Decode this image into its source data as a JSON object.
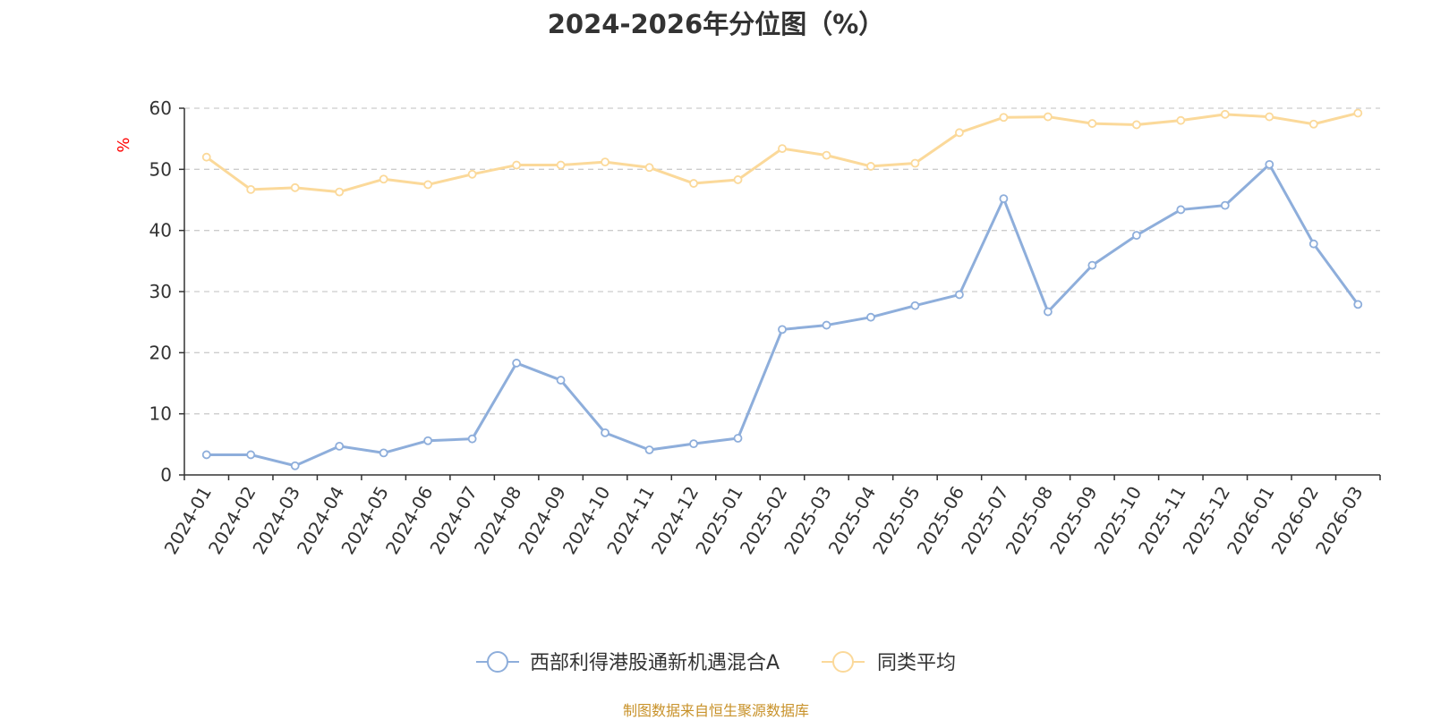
{
  "chart_data": {
    "type": "line",
    "title": "2024-2026年分位图（%）",
    "ylabel": "%",
    "xlabel": "",
    "ylim": [
      0,
      60
    ],
    "yticks": [
      0,
      10,
      20,
      30,
      40,
      50,
      60
    ],
    "grid": "horizontal-dashed",
    "legend_position": "bottom-center",
    "categories": [
      "2024-01",
      "2024-02",
      "2024-03",
      "2024-04",
      "2024-05",
      "2024-06",
      "2024-07",
      "2024-08",
      "2024-09",
      "2024-10",
      "2024-11",
      "2024-12",
      "2025-01",
      "2025-02",
      "2025-03",
      "2025-04",
      "2025-05",
      "2025-06",
      "2025-07",
      "2025-08",
      "2025-09",
      "2025-10",
      "2025-11",
      "2025-12",
      "2026-01",
      "2026-02",
      "2026-03"
    ],
    "series": [
      {
        "name": "西部利得港股通新机遇混合A",
        "color": "#8eaedb",
        "values": [
          3.3,
          3.3,
          1.5,
          4.7,
          3.6,
          5.6,
          5.9,
          18.3,
          15.5,
          6.9,
          4.1,
          5.1,
          6.0,
          23.8,
          24.5,
          25.8,
          27.7,
          29.5,
          45.2,
          26.7,
          34.3,
          39.2,
          43.4,
          44.1,
          50.8,
          37.8,
          27.9
        ]
      },
      {
        "name": "同类平均",
        "color": "#fbd99a",
        "values": [
          52.0,
          46.7,
          47.0,
          46.3,
          48.4,
          47.5,
          49.2,
          50.7,
          50.7,
          51.2,
          50.3,
          47.7,
          48.3,
          53.4,
          52.3,
          50.5,
          51.0,
          56.0,
          58.5,
          58.6,
          57.5,
          57.3,
          58.0,
          59.0,
          58.6,
          57.4,
          59.2
        ]
      }
    ]
  },
  "colors": {
    "axis": "#333333",
    "grid": "#cccccc",
    "ylabel": "#ff0000",
    "source": "#c8922a"
  },
  "source_note": "制图数据来自恒生聚源数据库"
}
